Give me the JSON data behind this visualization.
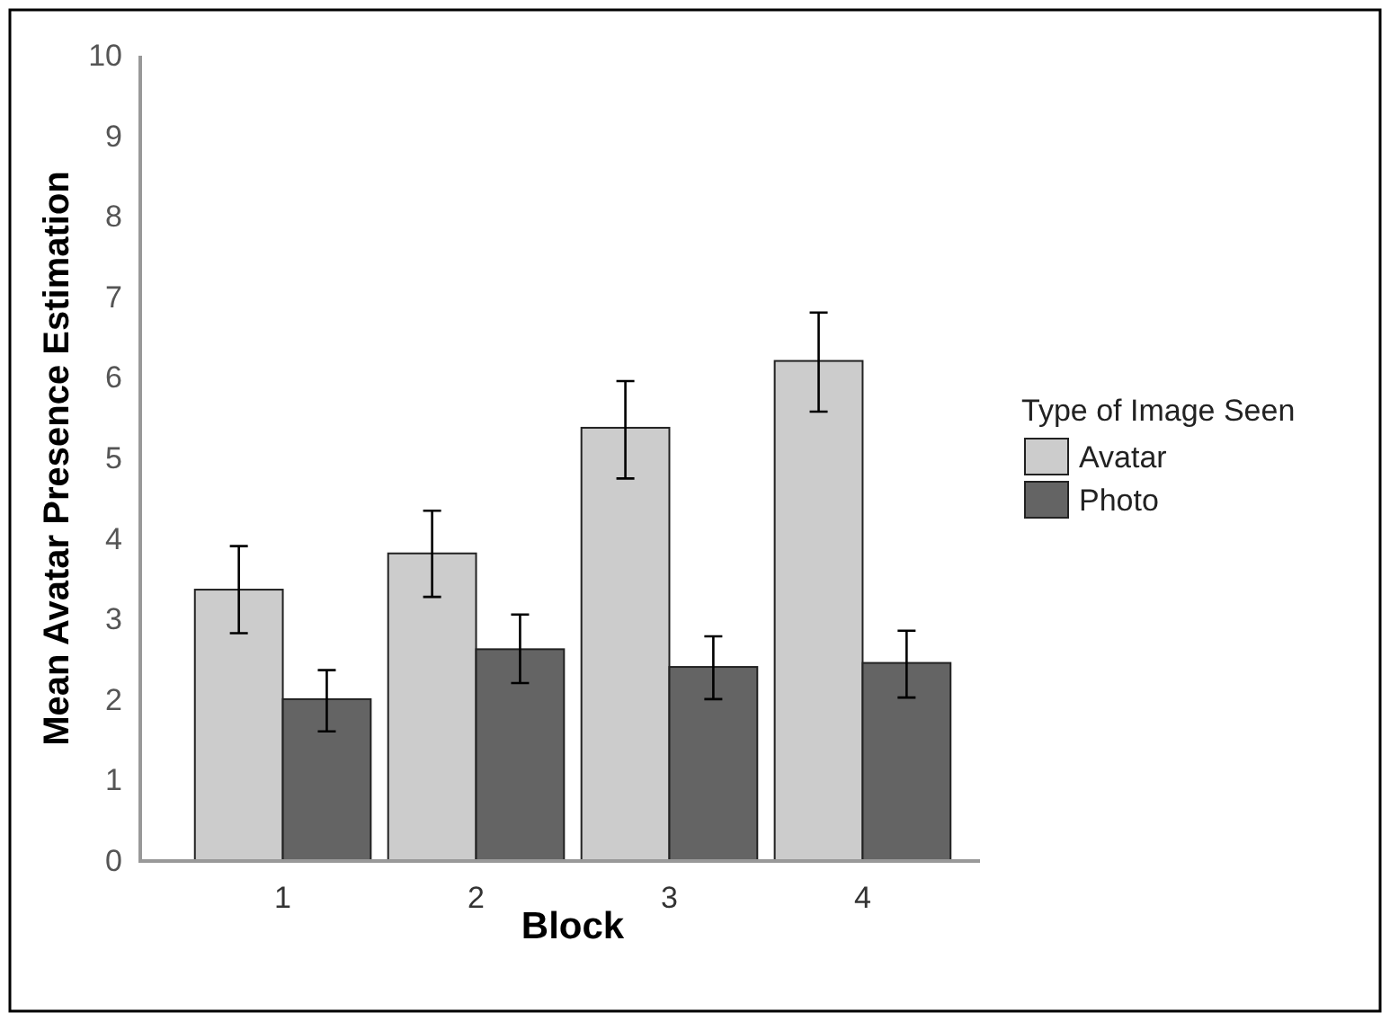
{
  "chart_data": {
    "type": "bar",
    "xlabel": "Block",
    "ylabel": "Mean Avatar Presence Estimation",
    "legend_title": "Type of Image Seen",
    "legend": "right",
    "categories": [
      "1",
      "2",
      "3",
      "4"
    ],
    "ylim": [
      0,
      10
    ],
    "yticks": [
      0,
      1,
      2,
      3,
      4,
      5,
      6,
      7,
      8,
      9,
      10
    ],
    "series": [
      {
        "name": "Avatar",
        "color": "#cccccc",
        "values": [
          3.37,
          3.82,
          5.38,
          6.21
        ],
        "errors": [
          [
            2.83,
            3.91
          ],
          [
            3.28,
            4.35
          ],
          [
            4.75,
            5.96
          ],
          [
            5.58,
            6.81
          ]
        ]
      },
      {
        "name": "Photo",
        "color": "#646464",
        "values": [
          2.01,
          2.63,
          2.41,
          2.46
        ],
        "errors": [
          [
            1.61,
            2.37
          ],
          [
            2.21,
            3.06
          ],
          [
            2.01,
            2.79
          ],
          [
            2.03,
            2.86
          ]
        ]
      }
    ]
  }
}
